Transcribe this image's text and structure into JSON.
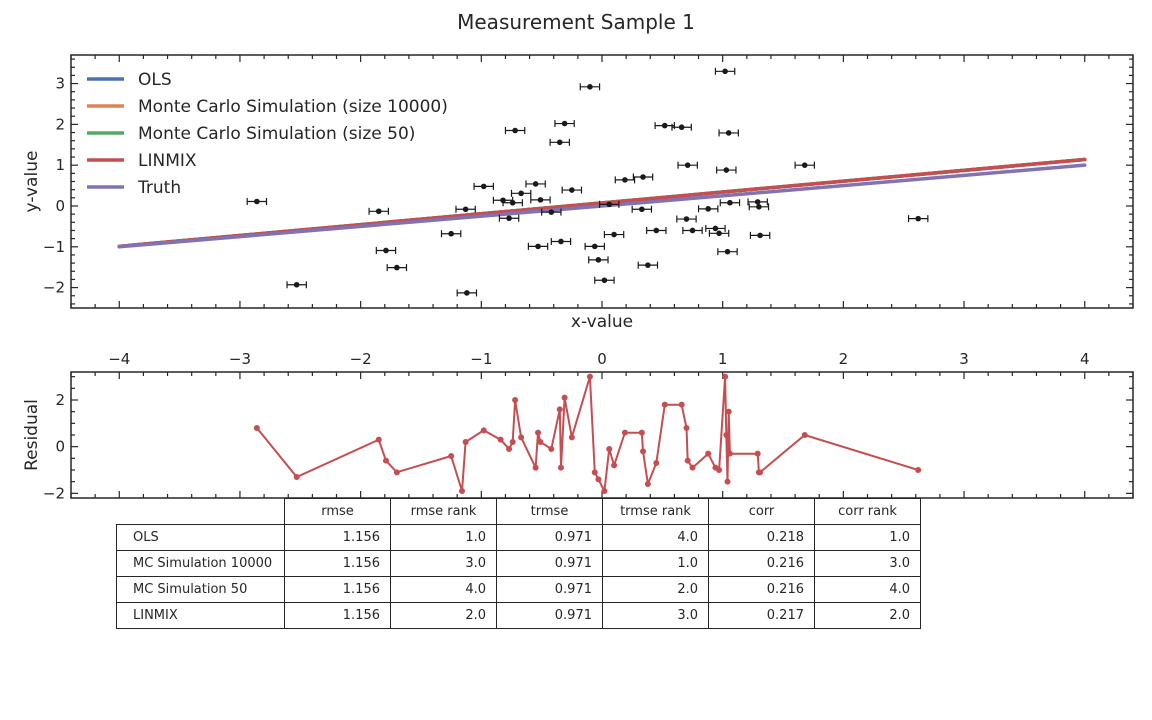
{
  "title": "Measurement Sample 1",
  "chart_data": [
    {
      "type": "scatter",
      "title": "Measurement Sample 1",
      "xlabel": "x-value",
      "ylabel": "y-value",
      "xlim": [
        -4.4,
        4.4
      ],
      "ylim": [
        -2.5,
        3.7
      ],
      "xticks": [
        -4,
        -3,
        -2,
        -1,
        0,
        1,
        2,
        3,
        4
      ],
      "yticks": [
        -2,
        -1,
        0,
        1,
        2,
        3
      ],
      "legend_position": "top-left",
      "series": [
        {
          "name": "OLS",
          "color": "#4c72b0",
          "type": "line",
          "x": [
            -4,
            4
          ],
          "y": [
            -0.99,
            1.14
          ]
        },
        {
          "name": "Monte Carlo Simulation (size 10000)",
          "color": "#dd8452",
          "type": "line",
          "x": [
            -4,
            4
          ],
          "y": [
            -0.99,
            1.14
          ]
        },
        {
          "name": "Monte Carlo Simulation (size 50)",
          "color": "#55a868",
          "type": "line",
          "x": [
            -4,
            4
          ],
          "y": [
            -0.99,
            1.14
          ]
        },
        {
          "name": "LINMIX",
          "color": "#c44e52",
          "type": "line",
          "x": [
            -4,
            4
          ],
          "y": [
            -0.99,
            1.14
          ]
        },
        {
          "name": "Truth",
          "color": "#8172b3",
          "type": "line",
          "x": [
            -4,
            4
          ],
          "y": [
            -1.0,
            1.0
          ]
        }
      ],
      "points": {
        "color": "#1a1a1a",
        "xerr": 0.08,
        "yerr": 0.05,
        "x": [
          -2.86,
          -2.53,
          -1.85,
          -1.79,
          -1.7,
          -1.25,
          -1.12,
          -1.13,
          -0.98,
          -0.82,
          -0.77,
          -0.74,
          -0.72,
          -0.67,
          -0.55,
          -0.53,
          -0.51,
          -0.42,
          -0.35,
          -0.34,
          -0.31,
          -0.25,
          -0.1,
          -0.06,
          -0.03,
          0.02,
          0.06,
          0.1,
          0.19,
          0.33,
          0.34,
          0.38,
          0.45,
          0.52,
          0.66,
          0.7,
          0.71,
          0.75,
          0.88,
          0.94,
          0.97,
          1.02,
          1.03,
          1.04,
          1.05,
          1.06,
          1.29,
          1.3,
          1.31,
          1.68,
          2.62
        ],
        "y": [
          0.11,
          -1.93,
          -0.13,
          -1.09,
          -1.51,
          -0.68,
          -2.13,
          -0.08,
          0.48,
          0.14,
          -0.3,
          0.08,
          1.85,
          0.31,
          0.54,
          -0.99,
          0.15,
          -0.15,
          1.56,
          -0.87,
          2.02,
          0.39,
          2.92,
          -0.99,
          -1.32,
          -1.82,
          0.04,
          -0.7,
          0.64,
          -0.08,
          0.71,
          -1.45,
          -0.6,
          1.97,
          1.93,
          -0.32,
          1.0,
          -0.6,
          -0.07,
          -0.55,
          -0.67,
          3.3,
          0.88,
          -1.12,
          1.79,
          0.08,
          0.1,
          -0.02,
          -0.72,
          1.0,
          -0.31
        ]
      }
    },
    {
      "type": "line",
      "ylabel": "Residual",
      "xlim": [
        -4.4,
        4.4
      ],
      "ylim": [
        -2.2,
        3.2
      ],
      "xticks": [
        -4,
        -3,
        -2,
        -1,
        0,
        1,
        2,
        3,
        4
      ],
      "yticks": [
        -2,
        0,
        2
      ],
      "series": [
        {
          "color": "#c44e52",
          "x": [
            -2.86,
            -2.53,
            -1.85,
            -1.79,
            -1.7,
            -1.25,
            -1.16,
            -1.13,
            -0.98,
            -0.84,
            -0.77,
            -0.74,
            -0.72,
            -0.67,
            -0.55,
            -0.53,
            -0.51,
            -0.42,
            -0.35,
            -0.34,
            -0.31,
            -0.25,
            -0.1,
            -0.06,
            -0.03,
            0.02,
            0.06,
            0.1,
            0.19,
            0.33,
            0.34,
            0.38,
            0.45,
            0.52,
            0.66,
            0.7,
            0.71,
            0.75,
            0.88,
            0.94,
            0.97,
            1.02,
            1.03,
            1.04,
            1.05,
            1.06,
            1.29,
            1.3,
            1.31,
            1.68,
            2.62
          ],
          "y": [
            0.8,
            -1.3,
            0.3,
            -0.6,
            -1.1,
            -0.4,
            -1.9,
            0.2,
            0.7,
            0.3,
            -0.1,
            0.2,
            2.0,
            0.4,
            -0.9,
            0.6,
            0.2,
            -0.1,
            1.6,
            -0.9,
            2.1,
            0.4,
            3.0,
            -1.1,
            -1.4,
            -1.9,
            -0.1,
            -0.8,
            0.6,
            0.6,
            -0.2,
            -1.6,
            -0.7,
            1.8,
            1.8,
            0.8,
            -0.6,
            -0.9,
            -0.3,
            -0.9,
            -1.0,
            3.0,
            0.5,
            -1.5,
            1.5,
            -0.3,
            -0.3,
            -1.1,
            -1.1,
            0.5,
            -1.0
          ]
        }
      ]
    }
  ],
  "table": {
    "columns": [
      "rmse",
      "rmse rank",
      "trmse",
      "trmse rank",
      "corr",
      "corr rank"
    ],
    "rows": [
      {
        "label": "OLS",
        "values": [
          "1.156",
          "1.0",
          "0.971",
          "4.0",
          "0.218",
          "1.0"
        ]
      },
      {
        "label": "MC Simulation 10000",
        "values": [
          "1.156",
          "3.0",
          "0.971",
          "1.0",
          "0.216",
          "3.0"
        ]
      },
      {
        "label": "MC Simulation 50",
        "values": [
          "1.156",
          "4.0",
          "0.971",
          "2.0",
          "0.216",
          "4.0"
        ]
      },
      {
        "label": "LINMIX",
        "values": [
          "1.156",
          "2.0",
          "0.971",
          "3.0",
          "0.217",
          "2.0"
        ]
      }
    ]
  }
}
